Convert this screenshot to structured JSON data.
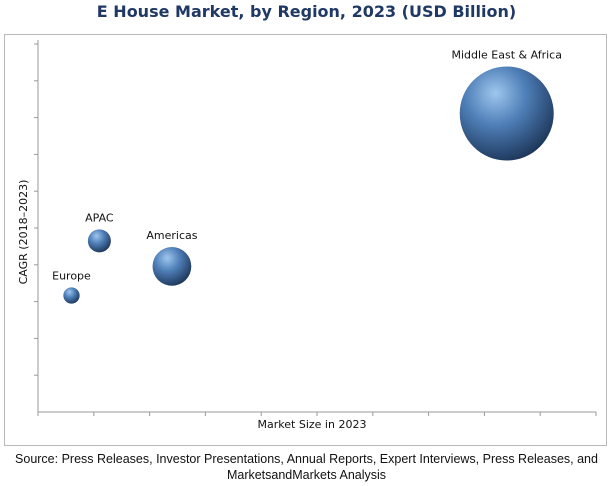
{
  "title": "E House Market, by Region, 2023 (USD Billion)",
  "source": "Source: Press Releases, Investor Presentations, Annual Reports, Expert Interviews, Press Releases, and MarketsandMarkets Analysis",
  "colors": {
    "title": "#1f3864",
    "bubble_light": "#9fc6ee",
    "bubble_mid": "#4f7fb8",
    "bubble_dark": "#1c3558",
    "axis": "#9a9a9a",
    "frame": "#b9b9b9"
  },
  "chart_data": {
    "type": "bubble",
    "title": "E House Market, by Region, 2023 (USD Billion)",
    "xlabel": "Market Size in 2023",
    "ylabel": "CAGR (2018–2023)",
    "xlim": [
      0,
      100
    ],
    "ylim": [
      0,
      100
    ],
    "grid": false,
    "tick_labels_shown": false,
    "points": [
      {
        "label": "Europe",
        "x": 6,
        "y": 32,
        "size": 3
      },
      {
        "label": "APAC",
        "x": 11,
        "y": 47,
        "size": 6
      },
      {
        "label": "Americas",
        "x": 24,
        "y": 40,
        "size": 17
      },
      {
        "label": "Middle East & Africa",
        "x": 84,
        "y": 82,
        "size": 100
      }
    ]
  }
}
